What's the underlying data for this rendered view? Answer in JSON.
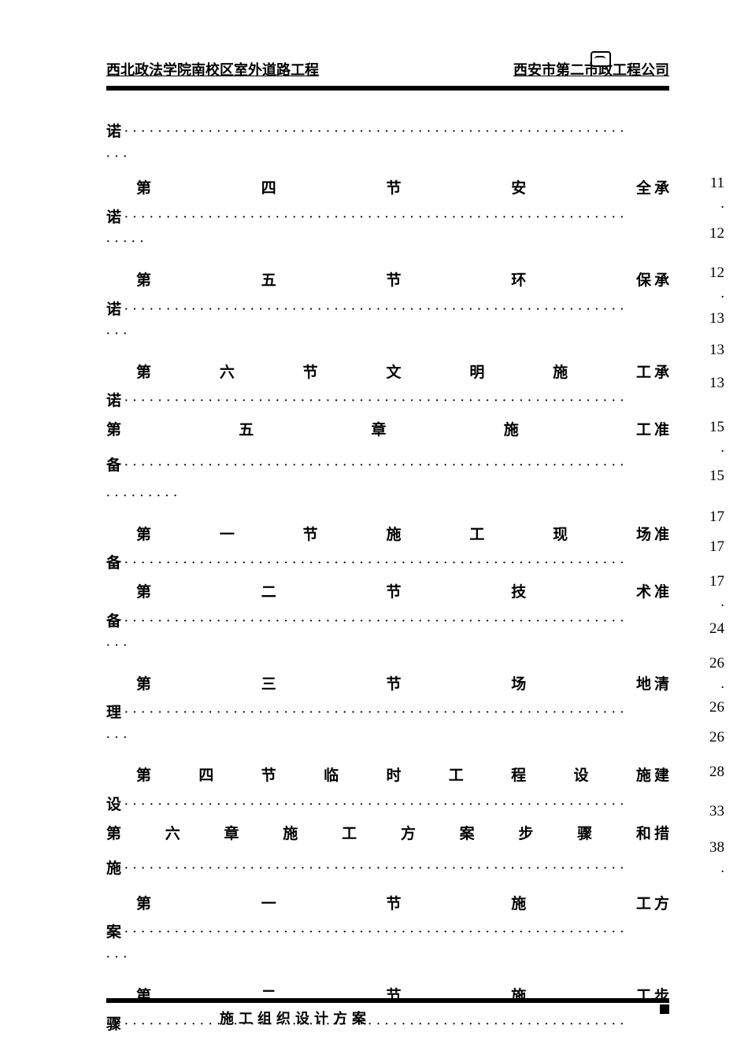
{
  "header": {
    "left": "西北政法学院南校区室外道路工程",
    "right": "西安市第二市政工程公司"
  },
  "toc": [
    {
      "type": "cont",
      "text": "诺",
      "dotsAfter": true,
      "contDots": "···"
    },
    {
      "type": "section",
      "indent": true,
      "chars": [
        "第",
        "四",
        "节",
        "安",
        "全"
      ],
      "last": "承",
      "page": "11"
    },
    {
      "type": "cont",
      "text": "诺",
      "dotsAfter": true,
      "contDots": "·····",
      "page": "."
    },
    {
      "type": "gap",
      "page": "12"
    },
    {
      "type": "section",
      "indent": true,
      "chars": [
        "第",
        "五",
        "节",
        "环",
        "保"
      ],
      "last": "承",
      "page": ""
    },
    {
      "type": "cont",
      "text": "诺",
      "dotsAfter": true,
      "contDots": "···",
      "page": "12"
    },
    {
      "type": "gap",
      "page": "."
    },
    {
      "type": "section",
      "indent": true,
      "chars": [
        "第",
        "六",
        "节",
        "文",
        "明",
        "施",
        "工"
      ],
      "last": "承",
      "page": "13"
    },
    {
      "type": "cont",
      "text": "诺",
      "dotsAfter": true,
      "contDots": "",
      "page": "13"
    },
    {
      "type": "chapter",
      "chars": [
        "第",
        "五",
        "章",
        "施",
        "工"
      ],
      "last": "准",
      "page": "13"
    },
    {
      "type": "gap",
      "page": ""
    },
    {
      "type": "cont",
      "text": "备",
      "dotsAfter": true,
      "contDots": "",
      "page": "15"
    },
    {
      "type": "gap",
      "page": "."
    },
    {
      "type": "dotsonly",
      "text": "·········",
      "page": "15"
    },
    {
      "type": "gap",
      "page": ""
    },
    {
      "type": "section",
      "indent": true,
      "chars": [
        "第",
        "一",
        "节",
        "施",
        "工",
        "现",
        "场"
      ],
      "last": "准",
      "page": "17"
    },
    {
      "type": "cont",
      "text": "备",
      "dotsAfter": true,
      "contDots": "",
      "page": "17"
    },
    {
      "type": "section",
      "indent": true,
      "chars": [
        "第",
        "二",
        "节",
        "技",
        "术"
      ],
      "last": "准",
      "page": ""
    },
    {
      "type": "cont",
      "text": "备",
      "dotsAfter": true,
      "contDots": "···",
      "page": "17"
    },
    {
      "type": "gap",
      "page": "."
    },
    {
      "type": "section",
      "indent": true,
      "chars": [
        "第",
        "三",
        "节",
        "场",
        "地"
      ],
      "last": "清",
      "page": "24"
    },
    {
      "type": "cont",
      "text": "理",
      "dotsAfter": true,
      "contDots": "···",
      "page": "26"
    },
    {
      "type": "gap",
      "page": "."
    },
    {
      "type": "section",
      "indent": true,
      "chars": [
        "第",
        "四",
        "节",
        "临",
        "时",
        "工",
        "程",
        "设",
        "施"
      ],
      "last": "建",
      "page": "26"
    },
    {
      "type": "cont",
      "text": "设",
      "dotsAfter": true,
      "contDots": "",
      "page": "26"
    },
    {
      "type": "chapter",
      "chars": [
        "第",
        "六",
        "章",
        "施",
        "工",
        "方",
        "案",
        "步",
        "骤",
        "和"
      ],
      "last": "措",
      "page": "28"
    },
    {
      "type": "gap",
      "page": ""
    },
    {
      "type": "cont",
      "text": "施",
      "dotsAfter": true,
      "contDots": "",
      "page": "33"
    },
    {
      "type": "gap",
      "page": ""
    },
    {
      "type": "section",
      "indent": true,
      "chars": [
        "第",
        "一",
        "节",
        "施",
        "工"
      ],
      "last": "方",
      "page": "38"
    },
    {
      "type": "cont",
      "text": "案",
      "dotsAfter": true,
      "contDots": "···",
      "page": "."
    },
    {
      "type": "gap",
      "page": ""
    },
    {
      "type": "section",
      "indent": true,
      "chars": [
        "第",
        "二",
        "节",
        "施",
        "工"
      ],
      "last": "步",
      "page": ""
    },
    {
      "type": "cont",
      "text": "骤",
      "dotsAfter": true,
      "contDots": "",
      "page": "."
    }
  ],
  "footer": {
    "text": "施工组织设计方案"
  },
  "style": {
    "fontsize_body": 19,
    "fontsize_header": 18,
    "color_text": "#000000",
    "color_bg": "#ffffff",
    "dot_spacing": 6
  }
}
